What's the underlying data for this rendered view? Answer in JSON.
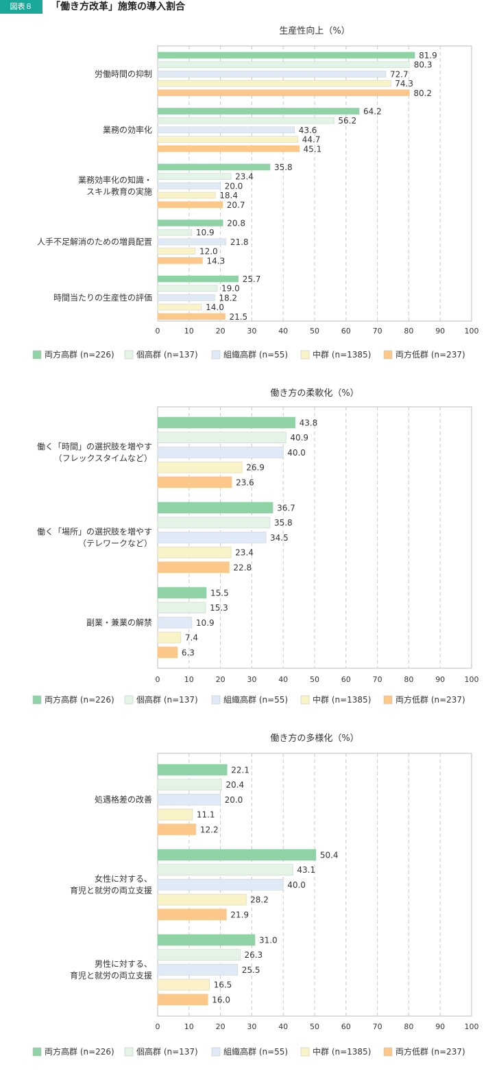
{
  "header": {
    "badge": "図表８",
    "title": "「働き方改革」施策の導入割合"
  },
  "colors": {
    "両方高群": "#8ed2a6",
    "個高群": "#e3f4e7",
    "組織高群": "#e0eaf6",
    "中群": "#faf3c8",
    "両方低群": "#fcc88a",
    "border": "#bbbbbb"
  },
  "legend": [
    {
      "label": "両方高群 (n=226)",
      "color": "#8ed2a6"
    },
    {
      "label": "個高群 (n=137)",
      "color": "#e3f4e7"
    },
    {
      "label": "組織高群 (n=55)",
      "color": "#e0eaf6"
    },
    {
      "label": "中群 (n=1385)",
      "color": "#faf3c8"
    },
    {
      "label": "両方低群 (n=237)",
      "color": "#fcc88a"
    }
  ],
  "chart_data": [
    {
      "type": "bar",
      "orientation": "horizontal",
      "title": "生産性向上（%）",
      "xlim": [
        0,
        100
      ],
      "xticks": [
        0,
        10,
        20,
        30,
        40,
        50,
        60,
        70,
        80,
        90,
        100
      ],
      "grid": "vertical dashed",
      "legend_position": "bottom",
      "categories": [
        [
          "労働時間の抑制"
        ],
        [
          "業務の効率化"
        ],
        [
          "業務効率化の知識・",
          "スキル教育の実施"
        ],
        [
          "人手不足解消のための増員配置"
        ],
        [
          "時間当たりの生産性の評価"
        ]
      ],
      "series": [
        {
          "name": "両方高群 (n=226)",
          "values": [
            81.9,
            64.2,
            35.8,
            20.8,
            25.7
          ]
        },
        {
          "name": "個高群 (n=137)",
          "values": [
            80.3,
            56.2,
            23.4,
            10.9,
            19.0
          ]
        },
        {
          "name": "組織高群 (n=55)",
          "values": [
            72.7,
            43.6,
            20.0,
            21.8,
            18.2
          ]
        },
        {
          "name": "中群 (n=1385)",
          "values": [
            74.3,
            44.7,
            18.4,
            12.0,
            14.0
          ]
        },
        {
          "name": "両方低群 (n=237)",
          "values": [
            80.2,
            45.1,
            20.7,
            14.3,
            21.5
          ]
        }
      ]
    },
    {
      "type": "bar",
      "orientation": "horizontal",
      "title": "働き方の柔軟化（%）",
      "xlim": [
        0,
        100
      ],
      "xticks": [
        0,
        10,
        20,
        30,
        40,
        50,
        60,
        70,
        80,
        90,
        100
      ],
      "grid": "vertical dashed",
      "legend_position": "bottom",
      "categories": [
        [
          "働く「時間」の選択肢を増やす",
          "（フレックスタイムなど）"
        ],
        [
          "働く「場所」の選択肢を増やす",
          "（テレワークなど）"
        ],
        [
          "副業・兼業の解禁"
        ]
      ],
      "series": [
        {
          "name": "両方高群 (n=226)",
          "values": [
            43.8,
            36.7,
            15.5
          ]
        },
        {
          "name": "個高群 (n=137)",
          "values": [
            40.9,
            35.8,
            15.3
          ]
        },
        {
          "name": "組織高群 (n=55)",
          "values": [
            40.0,
            34.5,
            10.9
          ]
        },
        {
          "name": "中群 (n=1385)",
          "values": [
            26.9,
            23.4,
            7.4
          ]
        },
        {
          "name": "両方低群 (n=237)",
          "values": [
            23.6,
            22.8,
            6.3
          ]
        }
      ]
    },
    {
      "type": "bar",
      "orientation": "horizontal",
      "title": "働き方の多様化（%）",
      "xlim": [
        0,
        100
      ],
      "xticks": [
        0,
        10,
        20,
        30,
        40,
        50,
        60,
        70,
        80,
        90,
        100
      ],
      "grid": "vertical dashed",
      "legend_position": "bottom",
      "categories": [
        [
          "処遇格差の改善"
        ],
        [
          "女性に対する、",
          "育児と就労の両立支援"
        ],
        [
          "男性に対する、",
          "育児と就労の両立支援"
        ]
      ],
      "series": [
        {
          "name": "両方高群 (n=226)",
          "values": [
            22.1,
            50.4,
            31.0
          ]
        },
        {
          "name": "個高群 (n=137)",
          "values": [
            20.4,
            43.1,
            26.3
          ]
        },
        {
          "name": "組織高群 (n=55)",
          "values": [
            20.0,
            40.0,
            25.5
          ]
        },
        {
          "name": "中群 (n=1385)",
          "values": [
            11.1,
            28.2,
            16.5
          ]
        },
        {
          "name": "両方低群 (n=237)",
          "values": [
            12.2,
            21.9,
            16.0
          ]
        }
      ]
    }
  ]
}
